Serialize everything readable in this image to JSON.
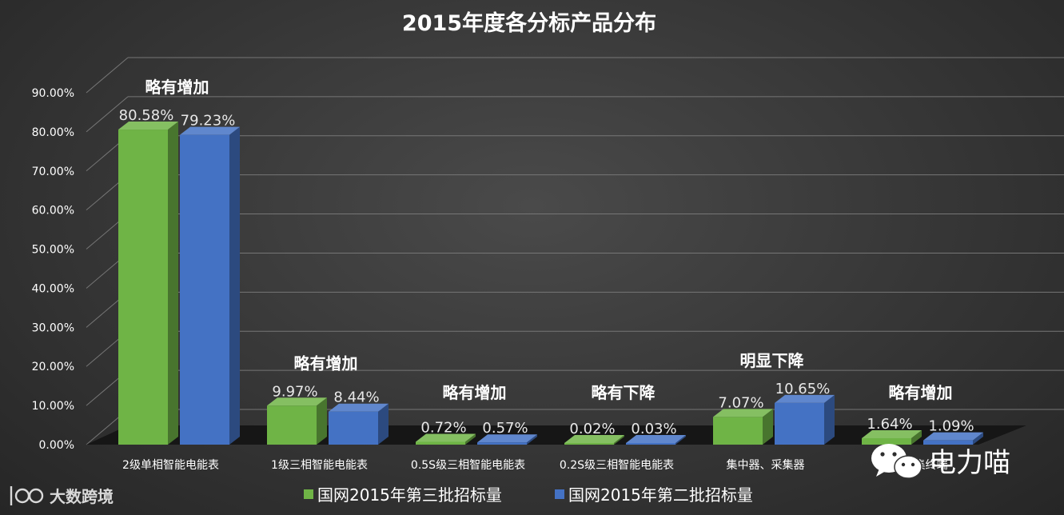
{
  "chart_data": {
    "type": "bar",
    "title": "2015年度各分标产品分布",
    "categories": [
      "2级单相智能电能表",
      "1级三相智能电能表",
      "0.5S级三相智能电能表",
      "0.2S级三相智能电能表",
      "集中器、采集器",
      "专变采集终端"
    ],
    "series": [
      {
        "name": "国网2015年第三批招标量",
        "values": [
          80.58,
          9.97,
          0.72,
          0.02,
          7.07,
          1.64
        ],
        "labels": [
          "80.58%",
          "9.97%",
          "0.72%",
          "0.02%",
          "7.07%",
          "1.64%"
        ],
        "color": "#6fb446"
      },
      {
        "name": "国网2015年第二批招标量",
        "values": [
          79.23,
          8.44,
          0.57,
          0.03,
          10.65,
          1.09
        ],
        "labels": [
          "79.23%",
          "8.44%",
          "0.57%",
          "0.03%",
          "10.65%",
          "1.09%"
        ],
        "color": "#4472c4"
      }
    ],
    "annotations": [
      "略有增加",
      "略有增加",
      "略有增加",
      "略有下降",
      "明显下降",
      "略有增加"
    ],
    "yticks": [
      "0.00%",
      "10.00%",
      "20.00%",
      "30.00%",
      "40.00%",
      "50.00%",
      "60.00%",
      "70.00%",
      "80.00%",
      "90.00%"
    ],
    "ylim": [
      0,
      90
    ],
    "grid": true,
    "legend_position": "bottom",
    "style": "3d-bar"
  },
  "watermarks": {
    "wechat_label": "电力喵",
    "logo_label": "大数跨境"
  },
  "colors": {
    "background": "#383838",
    "grid": "#7a7a7a",
    "floor": "#1a1a1a"
  }
}
